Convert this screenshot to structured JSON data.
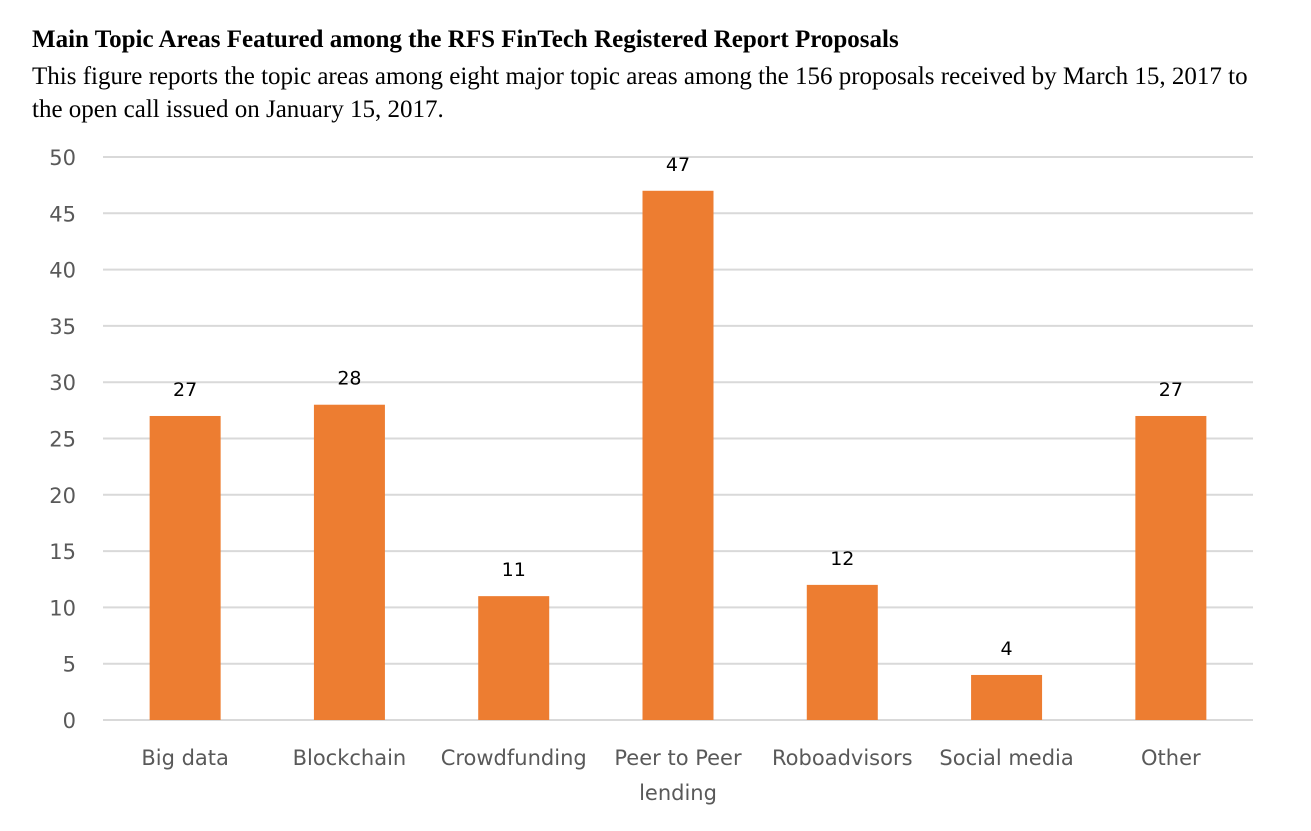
{
  "figure": {
    "title": "Main Topic Areas Featured among the RFS FinTech Registered Report Proposals",
    "caption": "This figure reports the topic areas among eight major topic areas among the 156 proposals received by March 15, 2017 to the open call issued on January 15, 2017."
  },
  "chart_data": {
    "type": "bar",
    "categories": [
      [
        "Big data"
      ],
      [
        "Blockchain"
      ],
      [
        "Crowdfunding"
      ],
      [
        "Peer to Peer",
        "lending"
      ],
      [
        "Roboadvisors"
      ],
      [
        "Social media"
      ],
      [
        "Other"
      ]
    ],
    "values": [
      27,
      28,
      11,
      47,
      12,
      4,
      27
    ],
    "title": "",
    "xlabel": "",
    "ylabel": "",
    "ylim": [
      0,
      50
    ],
    "yticks": [
      0,
      5,
      10,
      15,
      20,
      25,
      30,
      35,
      40,
      45,
      50
    ],
    "grid": true,
    "data_labels": true,
    "legend": "none",
    "colors": {
      "bar": "#ED7D31",
      "grid": "#D9D9D9",
      "tick_text": "#595959",
      "data_label_text": "#000000"
    }
  }
}
